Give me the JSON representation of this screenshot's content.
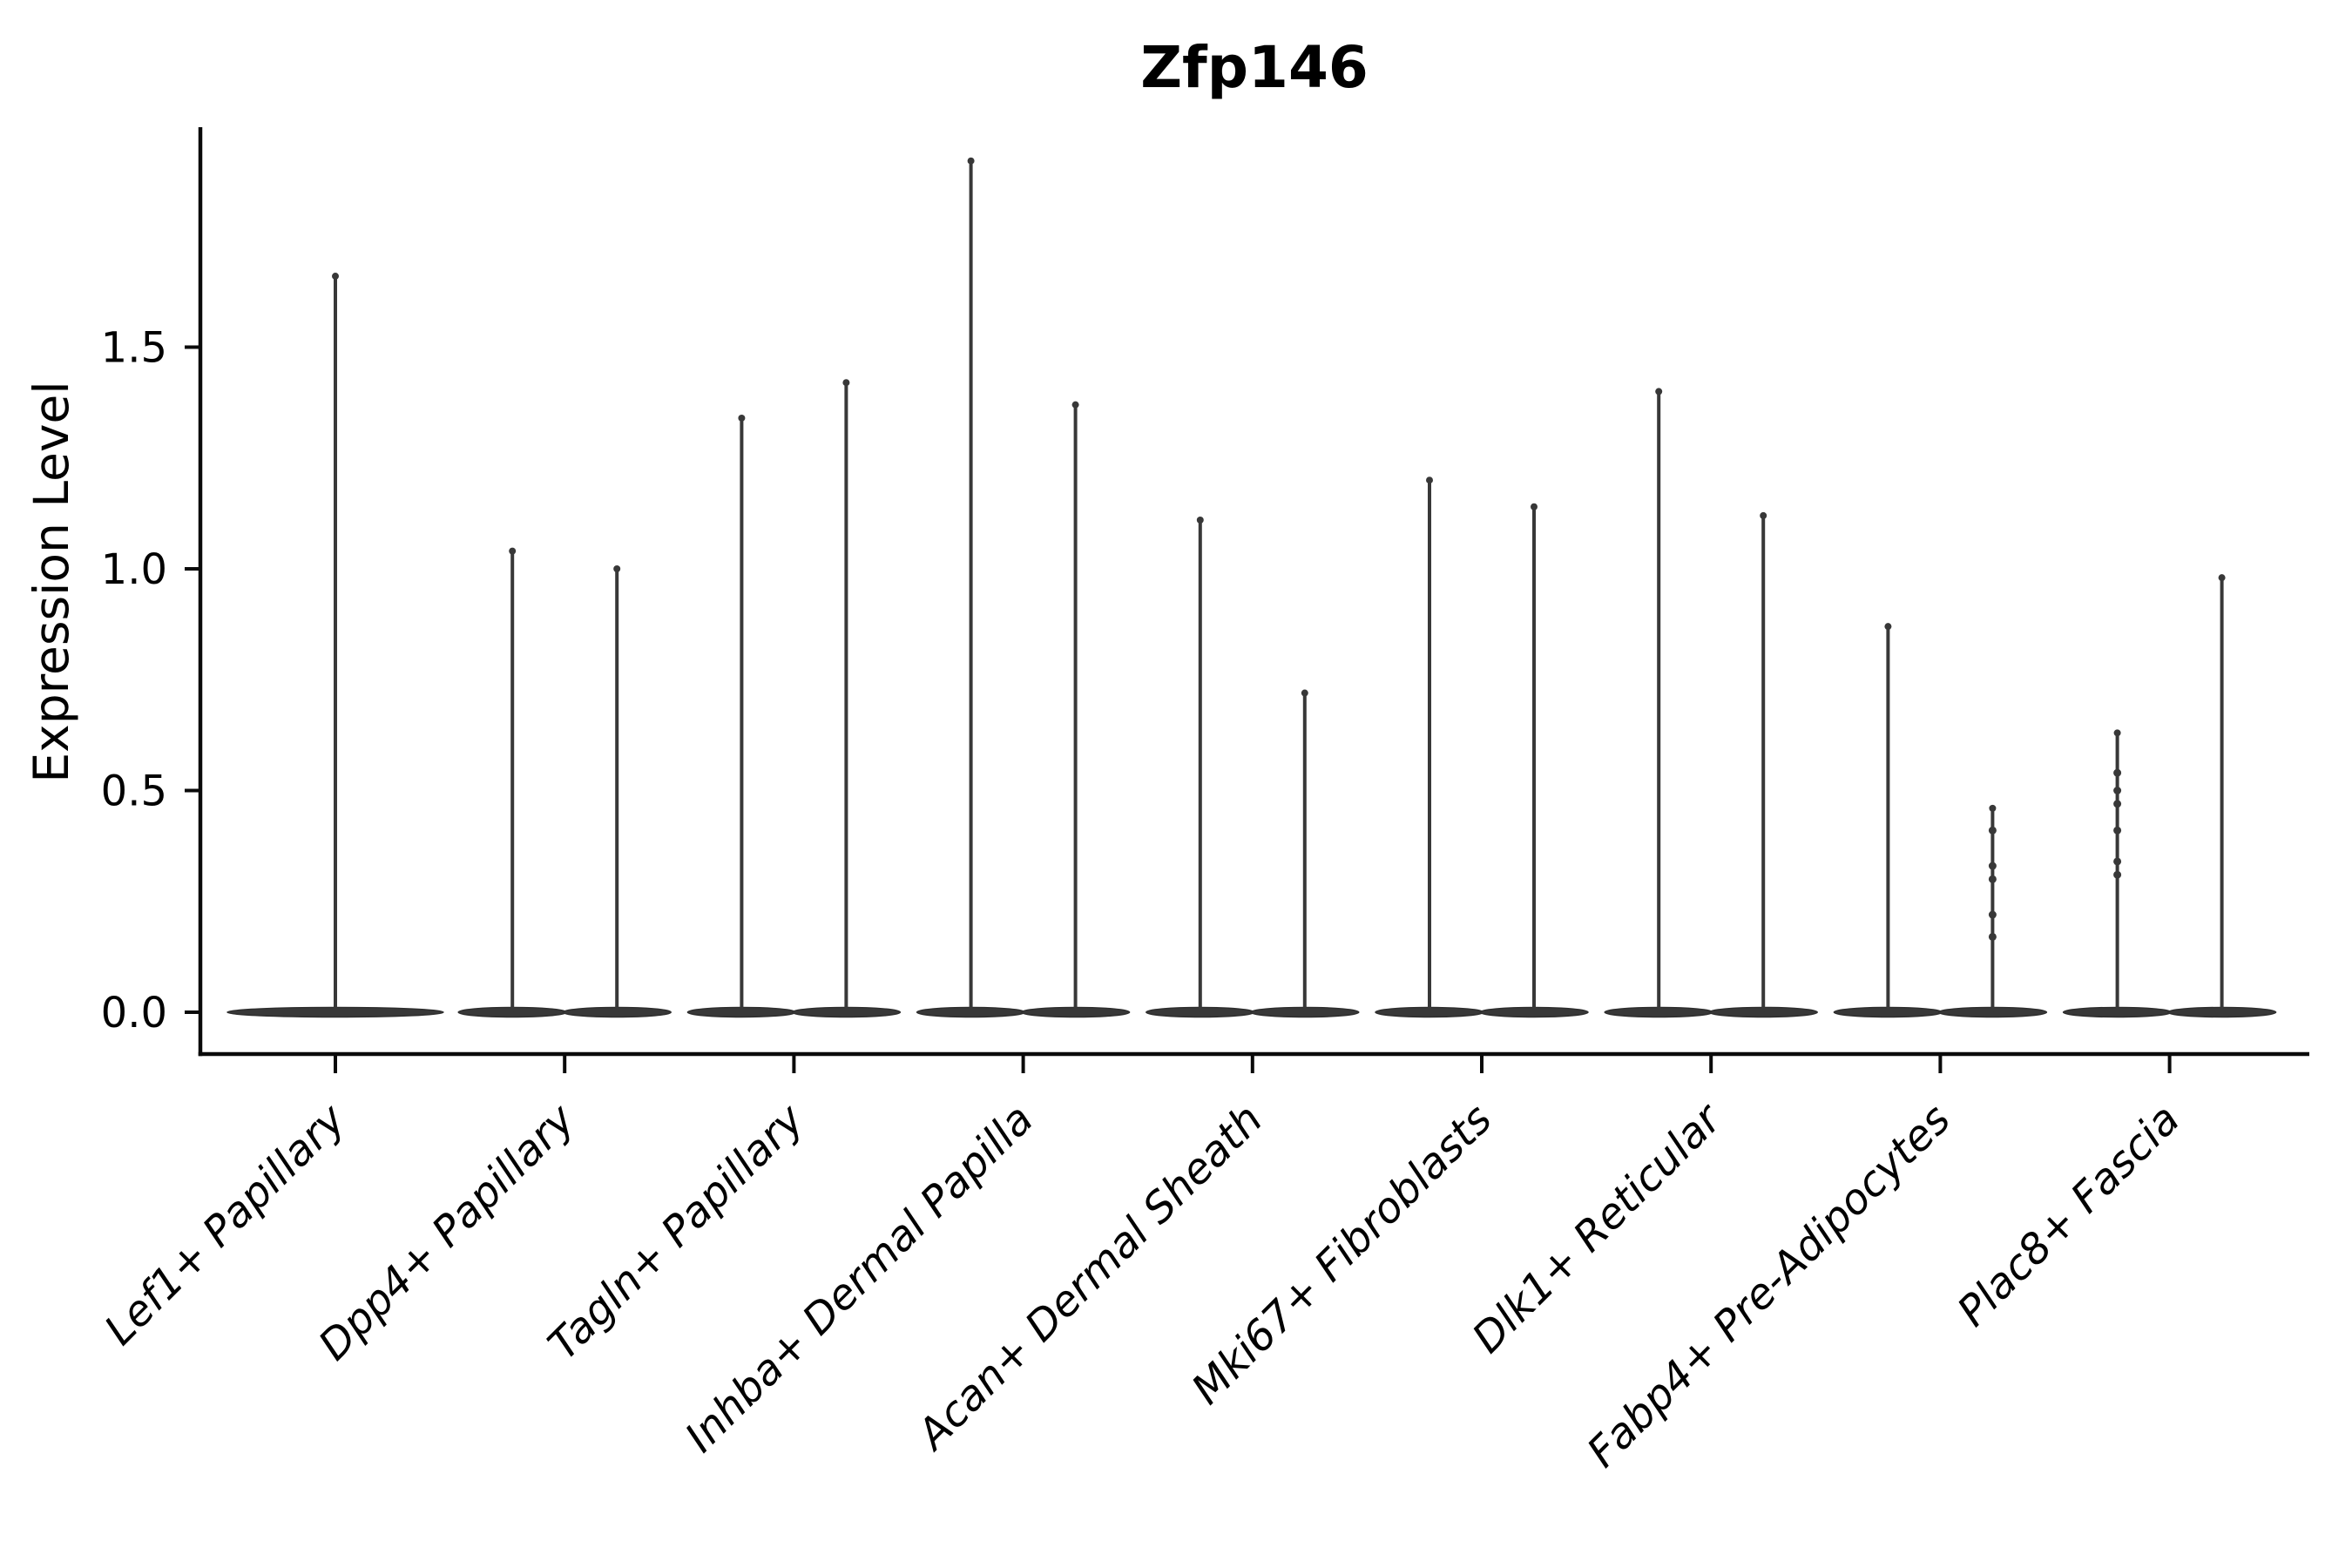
{
  "chart_data": {
    "type": "violin",
    "title": "Zfp146",
    "xlabel": "",
    "ylabel": "Expression Level",
    "ytick_labels": [
      "0.0",
      "0.5",
      "1.0",
      "1.5"
    ],
    "ylim": [
      -0.09,
      1.99
    ],
    "grid": false,
    "legend": "none",
    "style": "thin-spike violins with wide flat base at 0 (sparse single-cell expression), dark gray on white, only left and bottom spines, x labels rotated 45deg italic",
    "categories": [
      "Lef1+ Papillary",
      "Dpp4+ Papillary",
      "Tagln+ Papillary",
      "Inhba+ Dermal Papilla",
      "Acan+ Dermal Sheath",
      "Mki67+ Fibroblasts",
      "Dlk1+ Reticular",
      "Fabp4+ Pre-Adipocytes",
      "Plac8+ Fascia"
    ],
    "violins": [
      {
        "category": "Lef1+ Papillary",
        "maxima": [
          1.66
        ],
        "dots": [
          [
            1.66
          ]
        ]
      },
      {
        "category": "Dpp4+ Papillary",
        "maxima": [
          1.04,
          1.0
        ],
        "dots": [
          [
            1.04
          ],
          [
            1.0
          ]
        ]
      },
      {
        "category": "Tagln+ Papillary",
        "maxima": [
          1.34,
          1.42
        ],
        "dots": [
          [
            1.34
          ],
          [
            1.42
          ]
        ]
      },
      {
        "category": "Inhba+ Dermal Papilla",
        "maxima": [
          1.92,
          1.37
        ],
        "dots": [
          [
            1.92
          ],
          [
            1.37
          ]
        ]
      },
      {
        "category": "Acan+ Dermal Sheath",
        "maxima": [
          1.11,
          0.72
        ],
        "dots": [
          [
            1.11
          ],
          [
            0.72
          ]
        ]
      },
      {
        "category": "Mki67+ Fibroblasts",
        "maxima": [
          1.2,
          1.14
        ],
        "dots": [
          [
            1.2
          ],
          [
            1.14
          ]
        ]
      },
      {
        "category": "Dlk1+ Reticular",
        "maxima": [
          1.4,
          1.12
        ],
        "dots": [
          [
            1.4
          ],
          [
            1.12
          ]
        ]
      },
      {
        "category": "Fabp4+ Pre-Adipocytes",
        "maxima": [
          0.87,
          0.46
        ],
        "dots": [
          [
            0.87
          ],
          [
            0.46,
            0.41,
            0.33,
            0.3,
            0.22,
            0.17
          ]
        ]
      },
      {
        "category": "Plac8+ Fascia",
        "maxima": [
          0.63,
          0.98
        ],
        "dots": [
          [
            0.63,
            0.54,
            0.5,
            0.47,
            0.41,
            0.34,
            0.31
          ],
          [
            0.98
          ]
        ]
      }
    ],
    "baseline_value": 0.0
  },
  "colors": {
    "violin": "#383838",
    "violin_edge": "#2e2e2e",
    "axis": "#0a0a0a",
    "text": "#000000",
    "background": "#ffffff"
  }
}
